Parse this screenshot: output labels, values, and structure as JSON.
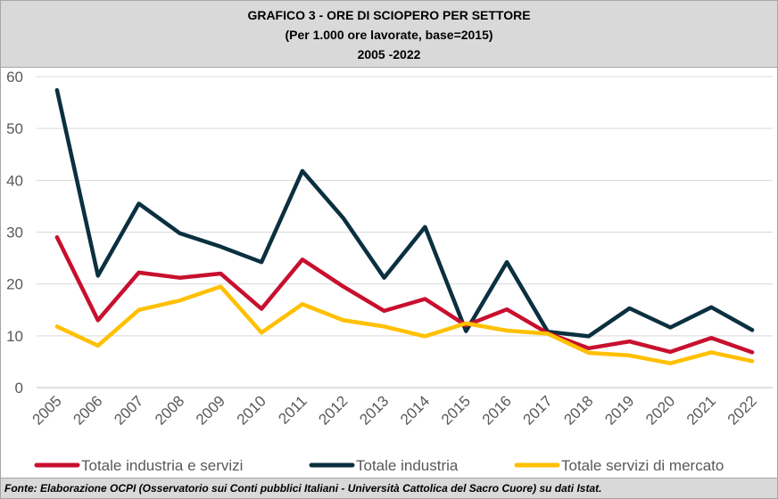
{
  "header": {
    "title": "GRAFICO 3 - ORE DI SCIOPERO PER SETTORE",
    "subtitle": "(Per 1.000 ore lavorate, base=2015)",
    "period": "2005 -2022"
  },
  "footer": {
    "source": "Fonte: Elaborazione OCPI (Osservatorio sui Conti pubblici Italiani - Università Cattolica del Sacro Cuore) su dati Istat."
  },
  "chart_data": {
    "type": "line",
    "title": "GRAFICO 3 - ORE DI SCIOPERO PER SETTORE",
    "xlabel": "",
    "ylabel": "",
    "ylim": [
      0,
      60
    ],
    "yticks": [
      0,
      10,
      20,
      30,
      40,
      50,
      60
    ],
    "grid": true,
    "legend_position": "bottom",
    "categories": [
      "2005",
      "2006",
      "2007",
      "2008",
      "2009",
      "2010",
      "2011",
      "2012",
      "2013",
      "2014",
      "2015",
      "2016",
      "2017",
      "2018",
      "2019",
      "2020",
      "2021",
      "2022"
    ],
    "series": [
      {
        "name": "Totale industria e servizi",
        "color": "#c8102e",
        "values": [
          29,
          13,
          22.2,
          21.2,
          22,
          15.2,
          24.7,
          19.5,
          14.8,
          17.1,
          12,
          15.1,
          10.5,
          7.6,
          8.9,
          6.9,
          9.6,
          6.8
        ]
      },
      {
        "name": "Totale industria",
        "color": "#0b3040",
        "values": [
          57.4,
          21.6,
          35.5,
          29.8,
          27.2,
          24.2,
          41.8,
          32.7,
          21.2,
          31,
          10.9,
          24.2,
          10.8,
          9.9,
          15.3,
          11.6,
          15.5,
          11.1
        ]
      },
      {
        "name": "Totale servizi di mercato",
        "color": "#ffc000",
        "values": [
          11.8,
          8.1,
          15,
          16.8,
          19.5,
          10.6,
          16.1,
          13,
          11.8,
          9.9,
          12.4,
          11,
          10.4,
          6.7,
          6.2,
          4.7,
          6.8,
          5.1
        ]
      }
    ]
  }
}
